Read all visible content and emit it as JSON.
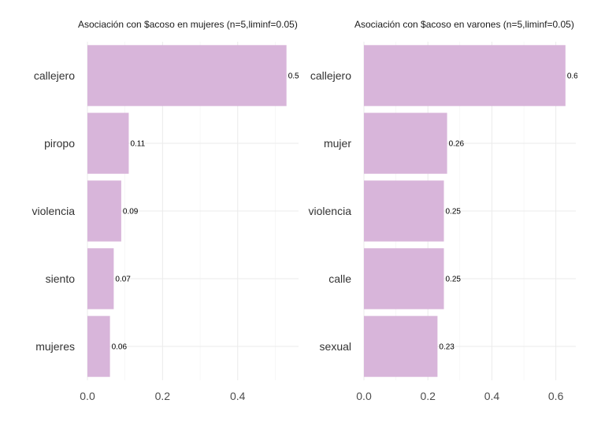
{
  "bar_color": "#d8b5da",
  "chart_data": [
    {
      "type": "bar",
      "orientation": "horizontal",
      "title": "Asociación con $acoso en mujeres (n=5,liminf=0.05)",
      "categories": [
        "callejero",
        "piropo",
        "violencia",
        "siento",
        "mujeres"
      ],
      "values": [
        0.53,
        0.11,
        0.09,
        0.07,
        0.06
      ],
      "value_labels": [
        "0.53",
        "0.11",
        "0.09",
        "0.07",
        "0.06"
      ],
      "xlim": [
        0,
        0.56
      ],
      "xticks": [
        0,
        0.2,
        0.4
      ],
      "xtick_labels": [
        "0.0",
        "0.2",
        "0.4"
      ],
      "grid": true,
      "legend": "none"
    },
    {
      "type": "bar",
      "orientation": "horizontal",
      "title": "Asociación con $acoso en varones (n=5,liminf=0.05)",
      "categories": [
        "callejero",
        "mujer",
        "violencia",
        "calle",
        "sexual"
      ],
      "values": [
        0.63,
        0.26,
        0.25,
        0.25,
        0.23
      ],
      "value_labels": [
        "0.63",
        "0.26",
        "0.25",
        "0.25",
        "0.23"
      ],
      "xlim": [
        0,
        0.66
      ],
      "xticks": [
        0,
        0.2,
        0.4,
        0.6
      ],
      "xtick_labels": [
        "0.0",
        "0.2",
        "0.4",
        "0.6"
      ],
      "grid": true,
      "legend": "none"
    }
  ]
}
